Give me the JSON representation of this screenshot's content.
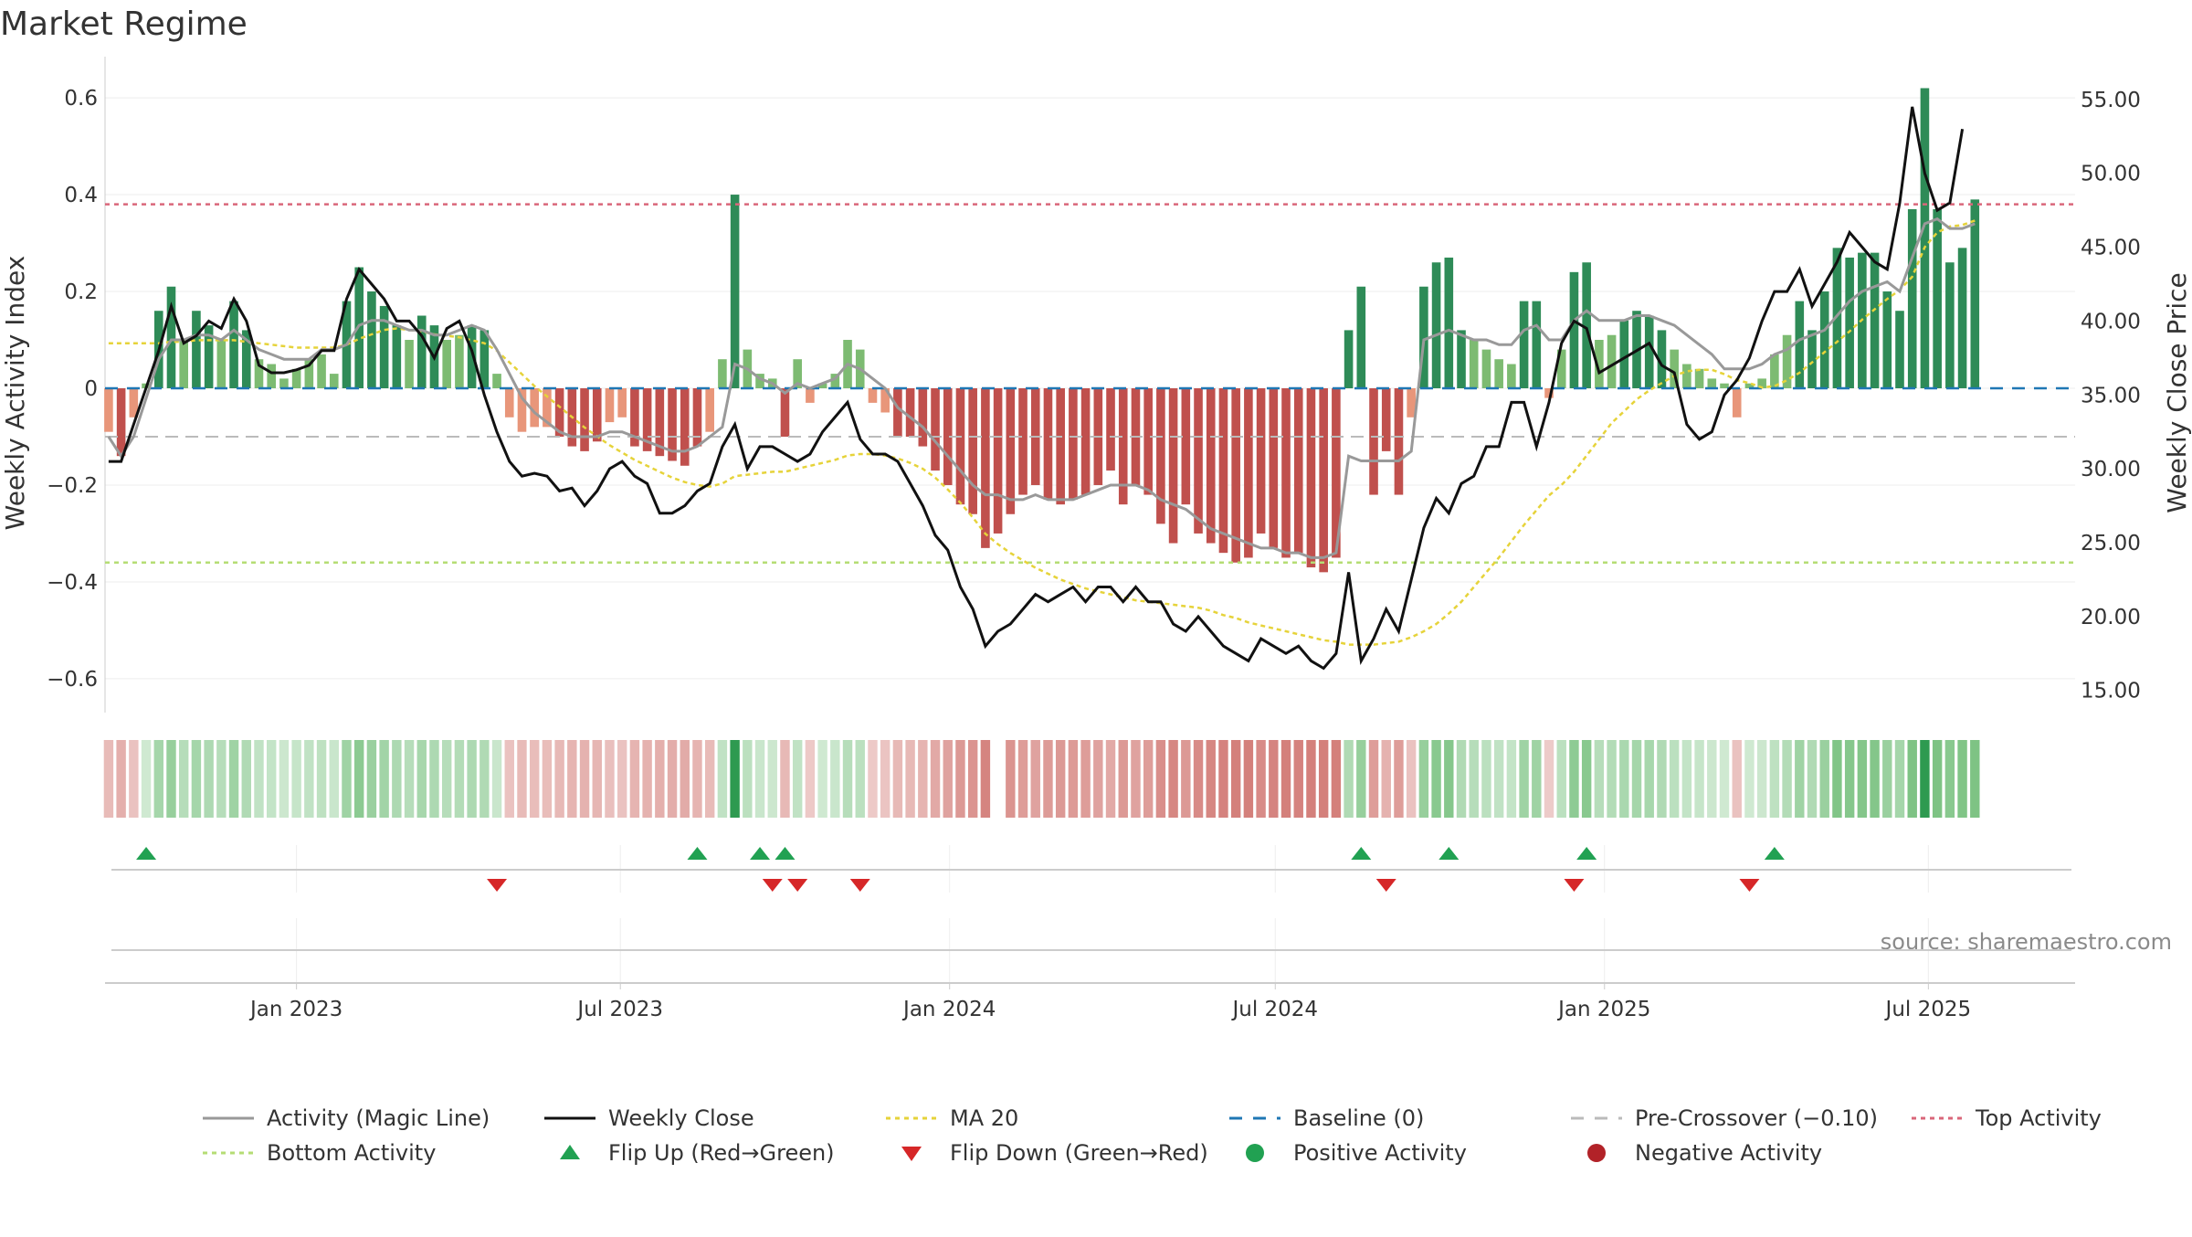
{
  "title": "Market Regime",
  "source_text": "source: sharemaestro.com",
  "colors": {
    "strong_green": "#2e8b57",
    "light_green": "#7dbb72",
    "strong_red": "#c0504d",
    "light_red": "#e8967a",
    "magic_line": "#999999",
    "close_line": "#111111",
    "ma20": "#e6d33a",
    "baseline": "#1f77b4",
    "pre_crossover": "#bbbbbb",
    "top_activity": "#d9677a",
    "bottom_activity": "#b5dd74",
    "flip_up": "#21a152",
    "flip_down": "#d62728",
    "positive": "#21a152",
    "negative": "#b22228"
  },
  "chart_data": {
    "type": "bar",
    "title": "Market Regime",
    "xlabel": "",
    "ylabel": "Weekly Activity Index",
    "y2label": "Weekly Close Price",
    "ylim": [
      -0.67,
      0.67
    ],
    "y2lim": [
      13.5,
      57.4
    ],
    "yticks": [
      0.6,
      0.4,
      0.2,
      0,
      -0.2,
      -0.4,
      -0.6
    ],
    "ytick_labels": [
      "0.6",
      "0.4",
      "0.2",
      "0",
      "−0.2",
      "−0.4",
      "−0.6"
    ],
    "y2ticks": [
      55,
      50,
      45,
      40,
      35,
      30,
      25,
      20,
      15
    ],
    "y2tick_labels": [
      "55.00",
      "50.00",
      "45.00",
      "40.00",
      "35.00",
      "30.00",
      "25.00",
      "20.00",
      "15.00"
    ],
    "xlim": [
      "2022-09-16",
      "2025-09-21"
    ],
    "xticks": [
      "2023-01-01",
      "2023-07-01",
      "2024-01-01",
      "2024-07-01",
      "2025-01-01",
      "2025-07-01"
    ],
    "xtick_labels": [
      "Jan 2023",
      "Jul 2023",
      "Jan 2024",
      "Jul 2024",
      "Jan 2025",
      "Jul 2025"
    ],
    "start_date": "2022-09-18",
    "week_days": 7,
    "top_activity": 0.38,
    "bottom_activity": -0.36,
    "pre_crossover": -0.1,
    "baseline": 0,
    "activity": [
      -0.09,
      -0.14,
      -0.06,
      0.01,
      0.16,
      0.21,
      0.1,
      0.16,
      0.13,
      0.1,
      0.18,
      0.12,
      0.06,
      0.05,
      0.02,
      0.04,
      0.06,
      0.07,
      0.03,
      0.18,
      0.25,
      0.2,
      0.17,
      0.13,
      0.1,
      0.15,
      0.13,
      0.1,
      0.11,
      0.13,
      0.12,
      0.03,
      -0.06,
      -0.09,
      -0.08,
      -0.08,
      -0.1,
      -0.12,
      -0.13,
      -0.11,
      -0.07,
      -0.06,
      -0.12,
      -0.13,
      -0.14,
      -0.15,
      -0.16,
      -0.12,
      -0.09,
      0.06,
      0.4,
      0.08,
      0.03,
      0.02,
      -0.1,
      0.06,
      -0.03,
      0.01,
      0.03,
      0.1,
      0.08,
      -0.03,
      -0.05,
      -0.1,
      -0.1,
      -0.12,
      -0.17,
      -0.2,
      -0.24,
      -0.26,
      -0.33,
      -0.3,
      -0.26,
      -0.22,
      -0.2,
      -0.23,
      -0.24,
      -0.23,
      -0.22,
      -0.2,
      -0.17,
      -0.24,
      -0.2,
      -0.22,
      -0.28,
      -0.32,
      -0.24,
      -0.3,
      -0.32,
      -0.34,
      -0.36,
      -0.35,
      -0.3,
      -0.33,
      -0.35,
      -0.34,
      -0.37,
      -0.38,
      -0.35,
      0.12,
      0.21,
      -0.22,
      -0.13,
      -0.22,
      -0.06,
      0.21,
      0.26,
      0.27,
      0.12,
      0.1,
      0.08,
      0.06,
      0.05,
      0.18,
      0.18,
      -0.02,
      0.08,
      0.24,
      0.26,
      0.1,
      0.11,
      0.14,
      0.16,
      0.15,
      0.12,
      0.08,
      0.05,
      0.04,
      0.02,
      0.01,
      -0.06,
      0.01,
      0.02,
      0.07,
      0.11,
      0.18,
      0.12,
      0.2,
      0.29,
      0.27,
      0.28,
      0.28,
      0.2,
      0.16,
      0.37,
      0.62,
      0.37,
      0.26,
      0.29,
      0.39
    ],
    "magic_line": [
      -0.1,
      -0.14,
      -0.1,
      -0.02,
      0.06,
      0.1,
      0.1,
      0.11,
      0.11,
      0.1,
      0.12,
      0.1,
      0.08,
      0.07,
      0.06,
      0.06,
      0.06,
      0.08,
      0.08,
      0.09,
      0.13,
      0.14,
      0.14,
      0.13,
      0.12,
      0.12,
      0.11,
      0.11,
      0.12,
      0.13,
      0.12,
      0.08,
      0.03,
      -0.02,
      -0.05,
      -0.07,
      -0.09,
      -0.1,
      -0.1,
      -0.1,
      -0.09,
      -0.09,
      -0.1,
      -0.11,
      -0.12,
      -0.13,
      -0.13,
      -0.12,
      -0.1,
      -0.08,
      0.05,
      0.04,
      0.02,
      0.01,
      -0.01,
      0.01,
      0.0,
      0.01,
      0.02,
      0.05,
      0.04,
      0.02,
      0.0,
      -0.04,
      -0.06,
      -0.08,
      -0.11,
      -0.14,
      -0.17,
      -0.2,
      -0.22,
      -0.22,
      -0.23,
      -0.23,
      -0.22,
      -0.23,
      -0.23,
      -0.23,
      -0.22,
      -0.21,
      -0.2,
      -0.2,
      -0.2,
      -0.21,
      -0.23,
      -0.24,
      -0.25,
      -0.27,
      -0.29,
      -0.3,
      -0.31,
      -0.32,
      -0.33,
      -0.33,
      -0.34,
      -0.34,
      -0.35,
      -0.35,
      -0.34,
      -0.14,
      -0.15,
      -0.15,
      -0.15,
      -0.15,
      -0.13,
      0.1,
      0.11,
      0.12,
      0.11,
      0.1,
      0.1,
      0.09,
      0.09,
      0.12,
      0.13,
      0.1,
      0.1,
      0.14,
      0.16,
      0.14,
      0.14,
      0.14,
      0.15,
      0.15,
      0.14,
      0.13,
      0.11,
      0.09,
      0.07,
      0.04,
      0.04,
      0.04,
      0.05,
      0.07,
      0.08,
      0.1,
      0.11,
      0.12,
      0.15,
      0.18,
      0.2,
      0.21,
      0.22,
      0.2,
      0.27,
      0.34,
      0.35,
      0.33,
      0.33,
      0.34
    ],
    "ma20_price": [
      38.5,
      38.5,
      38.5,
      38.5,
      38.5,
      38.6,
      38.6,
      38.7,
      38.7,
      38.7,
      38.7,
      38.6,
      38.5,
      38.4,
      38.3,
      38.2,
      38.2,
      38.2,
      38.2,
      38.4,
      38.8,
      39.1,
      39.4,
      39.5,
      39.4,
      39.3,
      39.1,
      39.0,
      38.9,
      38.7,
      38.5,
      38.0,
      37.2,
      36.4,
      35.6,
      34.9,
      34.2,
      33.5,
      32.8,
      32.2,
      31.6,
      31.1,
      30.6,
      30.2,
      29.8,
      29.4,
      29.1,
      28.9,
      28.8,
      29.0,
      29.5,
      29.6,
      29.7,
      29.8,
      29.8,
      30.0,
      30.2,
      30.4,
      30.6,
      30.9,
      31.0,
      31.0,
      30.9,
      30.7,
      30.4,
      30.0,
      29.4,
      28.6,
      27.7,
      26.7,
      25.6,
      24.9,
      24.3,
      23.8,
      23.3,
      22.9,
      22.5,
      22.2,
      21.9,
      21.7,
      21.5,
      21.3,
      21.1,
      21.0,
      20.9,
      20.8,
      20.7,
      20.6,
      20.4,
      20.1,
      19.9,
      19.6,
      19.4,
      19.2,
      19.0,
      18.8,
      18.6,
      18.4,
      18.3,
      18.1,
      18.1,
      18.1,
      18.2,
      18.3,
      18.6,
      19.0,
      19.5,
      20.2,
      21.0,
      22.0,
      23.0,
      24.0,
      25.1,
      26.2,
      27.2,
      28.2,
      28.9,
      29.8,
      30.9,
      32.0,
      33.1,
      33.9,
      34.7,
      35.3,
      35.8,
      36.3,
      36.6,
      36.7,
      36.7,
      36.4,
      36.0,
      35.8,
      35.5,
      35.6,
      36.0,
      36.5,
      37.2,
      37.9,
      38.6,
      39.3,
      40.1,
      40.8,
      41.5,
      42.1,
      43.0,
      45.0,
      46.0,
      46.4,
      46.5,
      46.8
    ],
    "weekly_close": [
      30.5,
      30.5,
      33.0,
      35.5,
      38.0,
      41.0,
      38.5,
      39.0,
      40.0,
      39.5,
      41.5,
      40.0,
      37.0,
      36.5,
      36.5,
      36.7,
      37.0,
      38.0,
      38.0,
      41.5,
      43.5,
      42.5,
      41.5,
      40.0,
      40.0,
      39.0,
      37.5,
      39.5,
      40.0,
      38.0,
      35.0,
      32.5,
      30.5,
      29.5,
      29.7,
      29.5,
      28.5,
      28.7,
      27.5,
      28.5,
      30.0,
      30.5,
      29.5,
      29.0,
      27.0,
      27.0,
      27.5,
      28.5,
      29.0,
      31.5,
      33.0,
      30.0,
      31.5,
      31.5,
      31.0,
      30.5,
      31.0,
      32.5,
      33.5,
      34.5,
      32.0,
      31.0,
      31.0,
      30.5,
      29.0,
      27.5,
      25.5,
      24.5,
      22.0,
      20.5,
      18.0,
      19.0,
      19.5,
      20.5,
      21.5,
      21.0,
      21.5,
      22.0,
      21.0,
      22.0,
      22.0,
      21.0,
      22.0,
      21.0,
      21.0,
      19.5,
      19.0,
      20.0,
      19.0,
      18.0,
      17.5,
      17.0,
      18.5,
      18.0,
      17.5,
      18.0,
      17.0,
      16.5,
      17.5,
      23.0,
      17.0,
      18.5,
      20.5,
      19.0,
      22.5,
      26.0,
      28.0,
      27.0,
      29.0,
      29.5,
      31.5,
      31.5,
      34.5,
      34.5,
      31.5,
      34.5,
      38.5,
      40.0,
      39.5,
      36.5,
      37.0,
      37.5,
      38.0,
      38.5,
      37.0,
      36.5,
      33.0,
      32.0,
      32.5,
      35.0,
      36.0,
      37.5,
      40.0,
      42.0,
      42.0,
      43.5,
      41.0,
      42.5,
      44.0,
      46.0,
      45.0,
      44.0,
      43.5,
      48.0,
      54.5,
      50.0,
      47.5,
      48.0,
      53.0
    ],
    "flip_up": [
      3,
      47,
      52,
      54,
      100,
      107,
      118,
      133
    ],
    "flip_down": [
      31,
      53,
      55,
      60,
      102,
      117,
      131
    ],
    "regime_strip": {
      "strong_green": [
        50,
        145
      ],
      "gap": [
        71
      ]
    },
    "legend": [
      {
        "label": "Activity (Magic Line)",
        "type": "solid",
        "color": "#999999"
      },
      {
        "label": "Weekly Close",
        "type": "solid",
        "color": "#111111"
      },
      {
        "label": "MA 20",
        "type": "dotted",
        "color": "#e6d33a"
      },
      {
        "label": "Baseline (0)",
        "type": "dashed",
        "color": "#1f77b4"
      },
      {
        "label": "Pre-Crossover (−0.10)",
        "type": "dashed",
        "color": "#bbbbbb"
      },
      {
        "label": "Top Activity",
        "type": "dotted",
        "color": "#d9677a"
      },
      {
        "label": "Bottom Activity",
        "type": "dotted",
        "color": "#b5dd74"
      },
      {
        "label": "Flip Up (Red→Green)",
        "type": "tri-up",
        "color": "#21a152"
      },
      {
        "label": "Flip Down (Green→Red)",
        "type": "tri-down",
        "color": "#d62728"
      },
      {
        "label": "Positive Activity",
        "type": "dot",
        "color": "#21a152"
      },
      {
        "label": "Negative Activity",
        "type": "dot",
        "color": "#b22228"
      }
    ]
  }
}
